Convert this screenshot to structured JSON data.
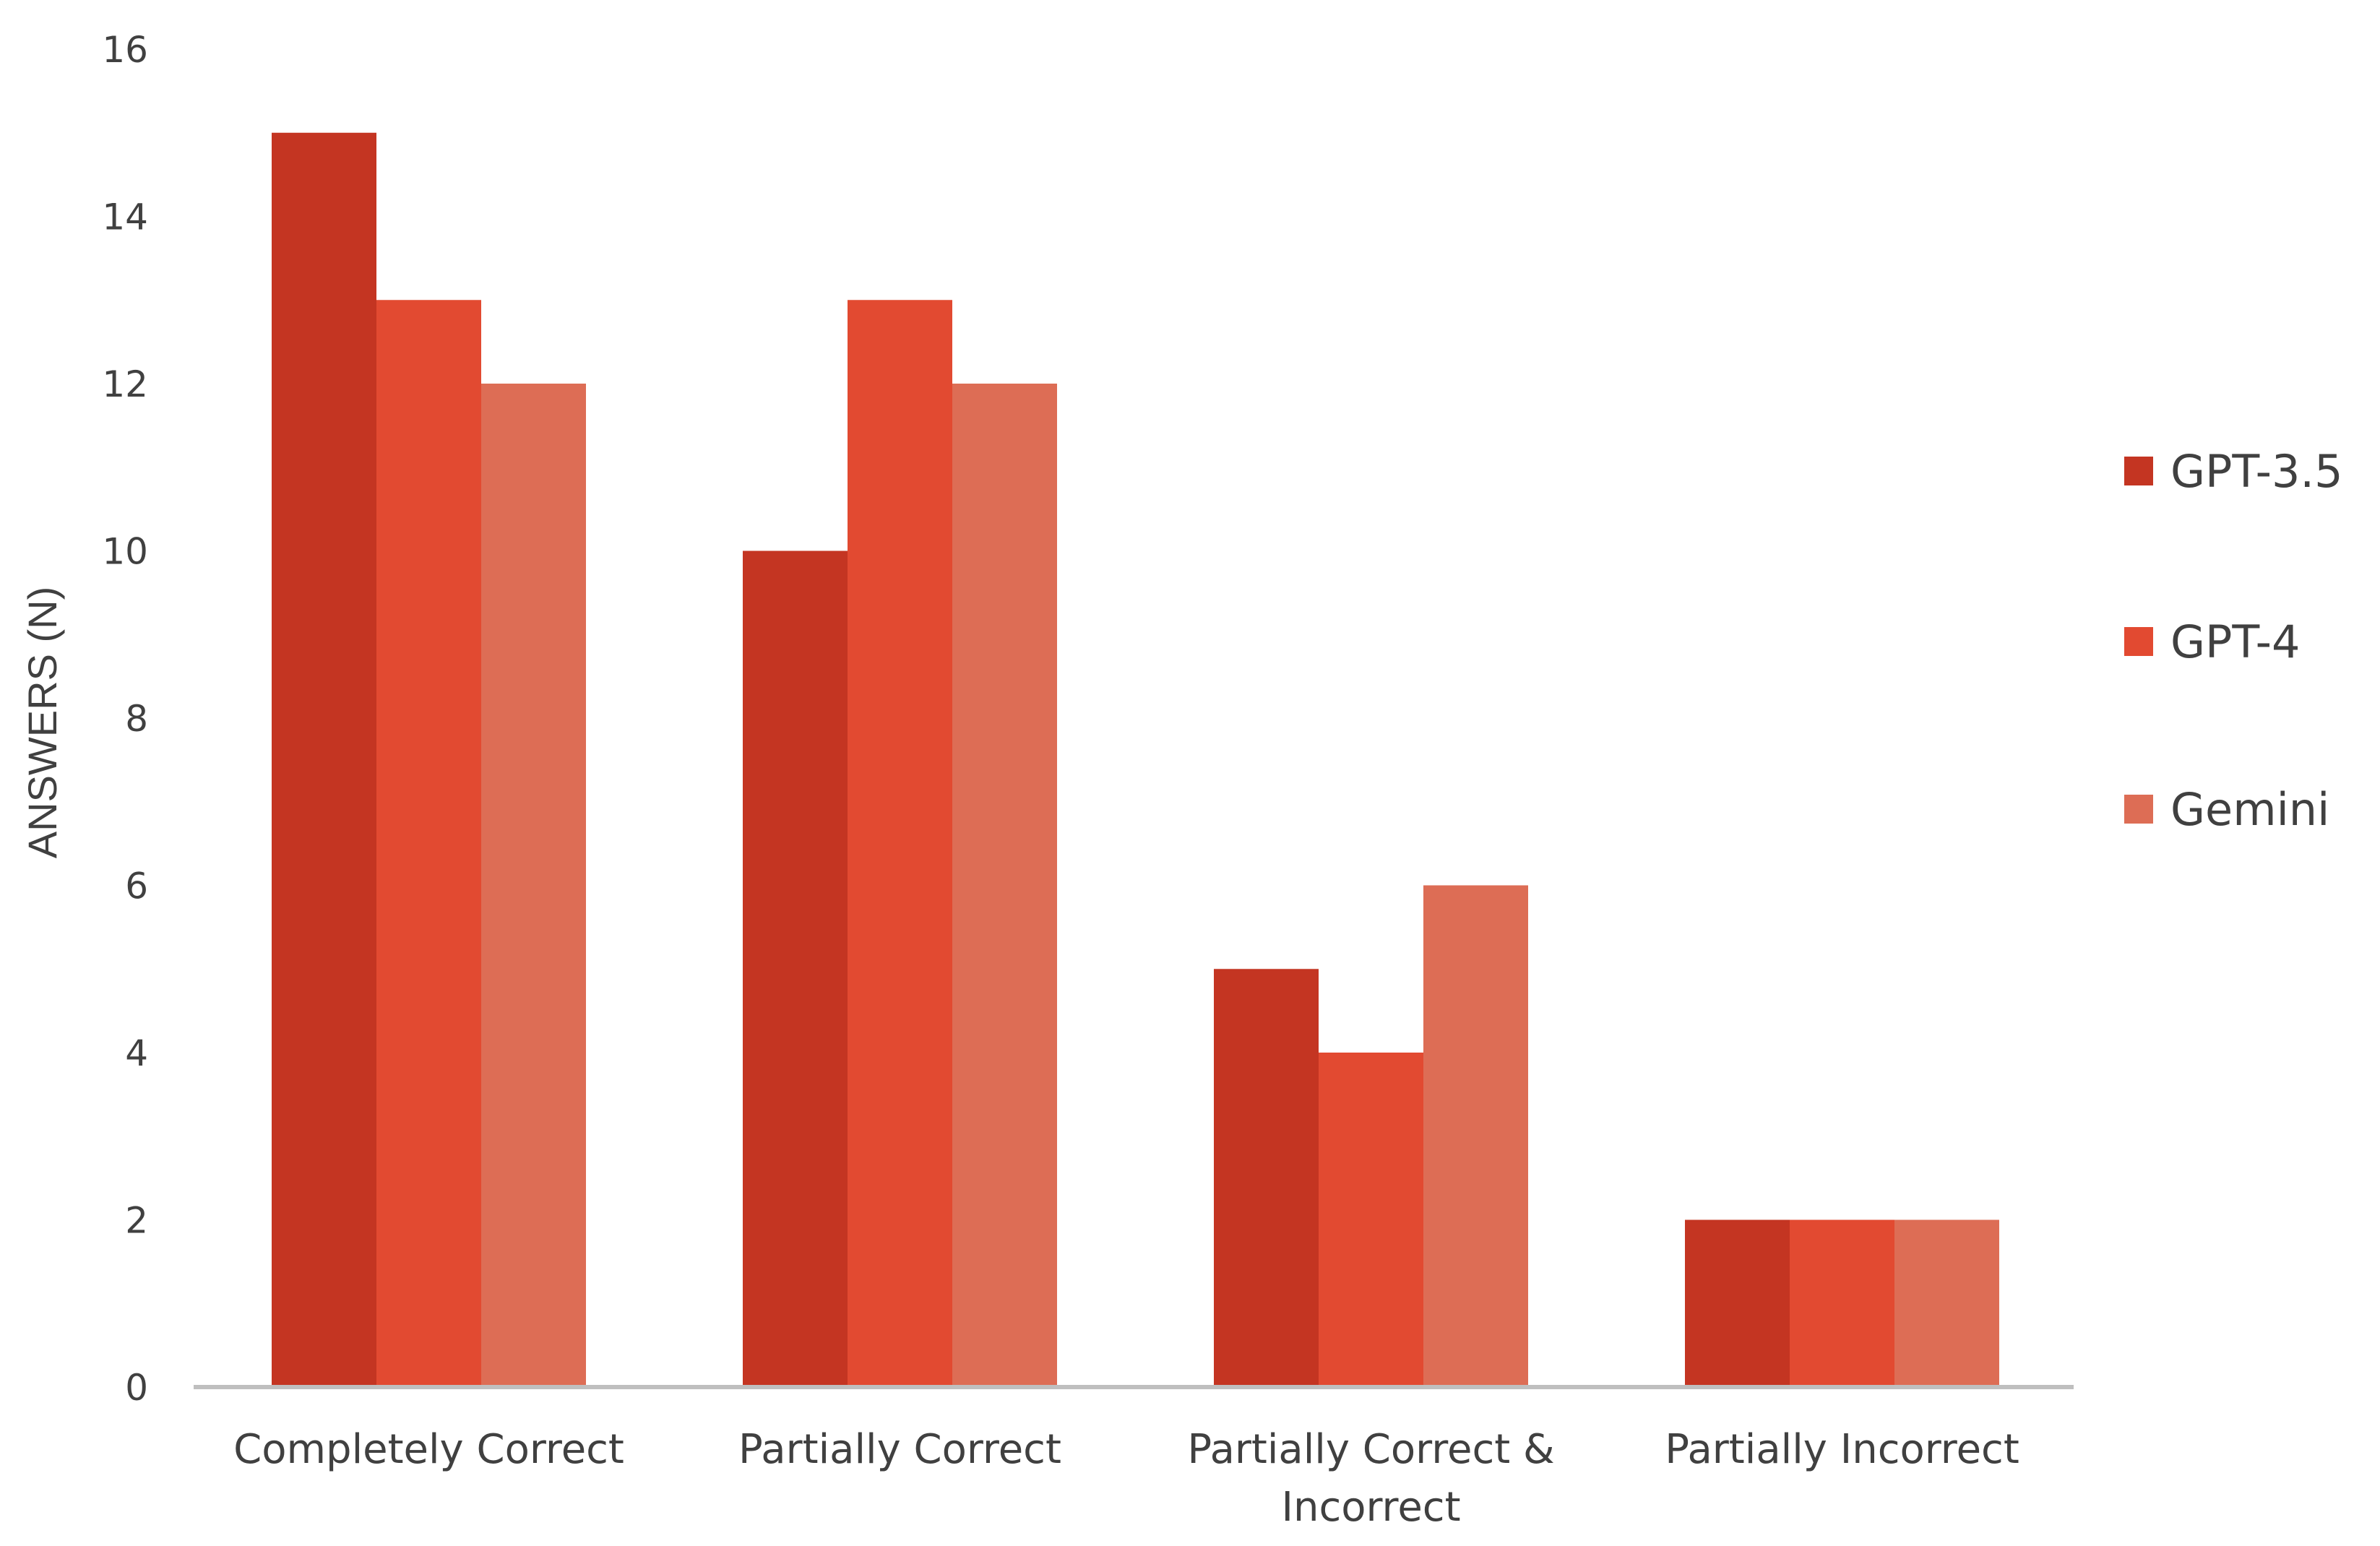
{
  "chart_data": {
    "type": "bar",
    "title": "",
    "xlabel": "",
    "ylabel": "ANSWERS (N)",
    "ylim": [
      0,
      16
    ],
    "yticks": [
      0,
      2,
      4,
      6,
      8,
      10,
      12,
      14,
      16
    ],
    "grid": false,
    "legend_position": "right",
    "categories": [
      [
        "Completely Correct"
      ],
      [
        "Partially Correct"
      ],
      [
        "Partially Correct &",
        "Incorrect"
      ],
      [
        "Partially Incorrect"
      ]
    ],
    "series": [
      {
        "name": "GPT-3.5",
        "color": "#c43522",
        "values": [
          15,
          10,
          5,
          2
        ]
      },
      {
        "name": "GPT-4",
        "color": "#e24a31",
        "values": [
          13,
          13,
          4,
          2
        ]
      },
      {
        "name": "Gemini",
        "color": "#dd6d55",
        "values": [
          12,
          12,
          6,
          2
        ]
      }
    ]
  }
}
